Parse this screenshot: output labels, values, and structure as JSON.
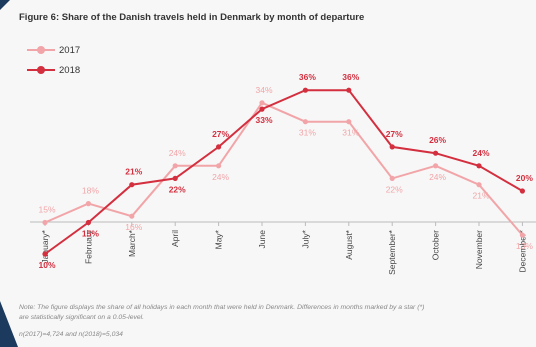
{
  "title": "Figure 6: Share of the Danish travels held in Denmark by month of departure",
  "note_line1": "Note: The figure displays the share of all holidays in each month that were held in Denmark. Differences in months marked by a star (*)",
  "note_line2": "are statistically significant on a 0.05-level.",
  "sample_note": "n(2017)=4,724 and n(2018)=5,034",
  "colors": {
    "s2017": "#f2a5a8",
    "s2018": "#d32f3f"
  },
  "chart_data": {
    "type": "line",
    "categories": [
      "January*",
      "February",
      "March*",
      "April",
      "May*",
      "June",
      "July*",
      "August*",
      "September*",
      "October",
      "November",
      "December*"
    ],
    "series": [
      {
        "name": "2017",
        "values": [
          15,
          18,
          16,
          24,
          24,
          34,
          31,
          31,
          22,
          24,
          21,
          13
        ],
        "labels": [
          "15%",
          "18%",
          "16%",
          "24%",
          "24%",
          "34%",
          "31%",
          "31%",
          "22%",
          "24%",
          "21%",
          "13%"
        ]
      },
      {
        "name": "2018",
        "values": [
          10,
          15,
          21,
          22,
          27,
          33,
          36,
          36,
          27,
          26,
          24,
          20
        ],
        "labels": [
          "10%",
          "15%",
          "21%",
          "22%",
          "27%",
          "33%",
          "36%",
          "36%",
          "27%",
          "26%",
          "24%",
          "20%"
        ]
      }
    ],
    "ylim": [
      0,
      40
    ],
    "grid": false,
    "legend": "top-left"
  }
}
